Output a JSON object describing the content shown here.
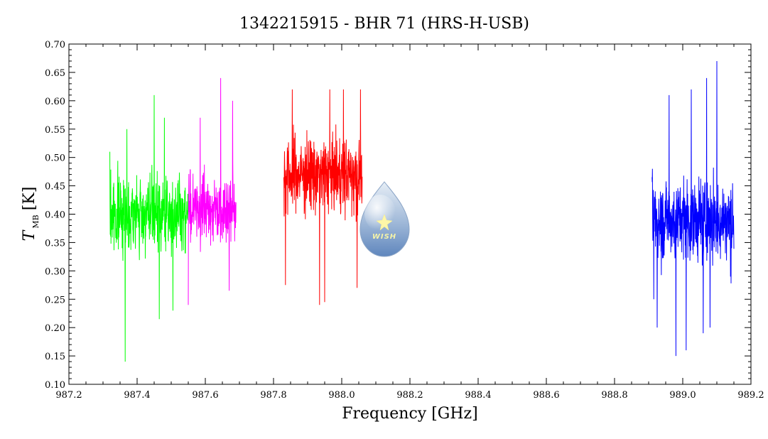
{
  "chart_data": {
    "type": "line",
    "title": "1342215915 - BHR 71 (HRS-H-USB)",
    "xlabel": "Frequency [GHz]",
    "ylabel": {
      "main": "T",
      "sub": "MB",
      "unit": "[K]"
    },
    "xlim": [
      987.2,
      989.2
    ],
    "ylim": [
      0.1,
      0.7
    ],
    "x_ticks": [
      "987.2",
      "987.4",
      "987.6",
      "987.8",
      "988.0",
      "988.2",
      "988.4",
      "988.6",
      "988.8",
      "989.0",
      "989.2"
    ],
    "y_ticks": [
      "0.10",
      "0.15",
      "0.20",
      "0.25",
      "0.30",
      "0.35",
      "0.40",
      "0.45",
      "0.50",
      "0.55",
      "0.60",
      "0.65",
      "0.70"
    ],
    "grid": false,
    "series": [
      {
        "color": "#00ff00",
        "x_range": [
          987.32,
          987.55
        ],
        "mean": 0.4,
        "noise": 0.055,
        "min": 0.14,
        "max": 0.61,
        "peaks": [
          [
            987.32,
            0.51
          ],
          [
            987.365,
            0.14
          ],
          [
            987.37,
            0.55
          ],
          [
            987.45,
            0.61
          ],
          [
            987.465,
            0.215
          ],
          [
            987.48,
            0.57
          ],
          [
            987.505,
            0.23
          ]
        ]
      },
      {
        "color": "#ff00ff",
        "x_range": [
          987.55,
          987.69
        ],
        "mean": 0.41,
        "noise": 0.05,
        "min": 0.24,
        "max": 0.64,
        "peaks": [
          [
            987.585,
            0.57
          ],
          [
            987.645,
            0.64
          ],
          [
            987.68,
            0.6
          ],
          [
            987.67,
            0.265
          ],
          [
            987.525,
            0.24
          ]
        ]
      },
      {
        "color": "#ff0000",
        "x_range": [
          987.83,
          988.06
        ],
        "mean": 0.47,
        "noise": 0.055,
        "min": 0.24,
        "max": 0.63,
        "peaks": [
          [
            987.835,
            0.275
          ],
          [
            987.855,
            0.62
          ],
          [
            987.935,
            0.24
          ],
          [
            987.95,
            0.245
          ],
          [
            987.965,
            0.62
          ],
          [
            988.005,
            0.62
          ],
          [
            988.055,
            0.62
          ],
          [
            988.045,
            0.27
          ]
        ]
      },
      {
        "color": "#0000ff",
        "x_range": [
          988.91,
          989.15
        ],
        "mean": 0.39,
        "noise": 0.06,
        "min": 0.15,
        "max": 0.67,
        "peaks": [
          [
            988.915,
            0.25
          ],
          [
            988.925,
            0.2
          ],
          [
            988.96,
            0.61
          ],
          [
            988.98,
            0.15
          ],
          [
            989.01,
            0.16
          ],
          [
            989.025,
            0.62
          ],
          [
            989.06,
            0.19
          ],
          [
            989.07,
            0.64
          ],
          [
            989.08,
            0.2
          ],
          [
            989.1,
            0.67
          ],
          [
            989.14,
            0.29
          ]
        ]
      }
    ]
  },
  "logo": {
    "text": "WISH"
  }
}
